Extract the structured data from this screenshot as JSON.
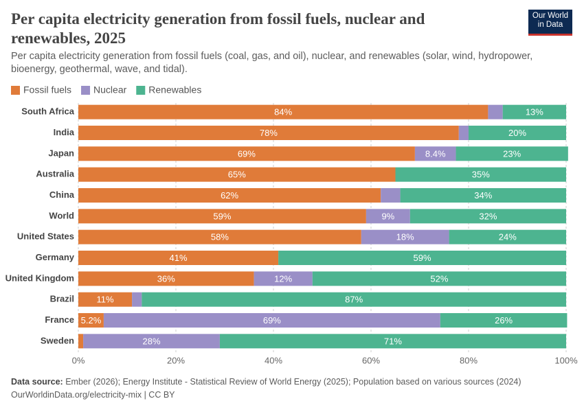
{
  "chart_data": {
    "type": "stacked_bar_horizontal",
    "title": "Per capita electricity generation from fossil fuels, nuclear and renewables, 2025",
    "subtitle": "Per capita electricity generation from fossil fuels (coal, gas, and oil), nuclear, and renewables (solar, wind, hydropower, bioenergy, geothermal, wave, and tidal).",
    "logo": [
      "Our World",
      "in Data"
    ],
    "source_label": "Data source:",
    "source": "Ember (2026); Energy Institute - Statistical Review of World Energy (2025); Population based on various sources (2024)",
    "url": "OurWorldinData.org/electricity-mix | CC BY",
    "legend_position": "top-left",
    "grid": true,
    "categories": [
      "South Africa",
      "India",
      "Japan",
      "Australia",
      "China",
      "World",
      "United States",
      "Germany",
      "United Kingdom",
      "Brazil",
      "France",
      "Sweden"
    ],
    "series": [
      {
        "name": "Fossil fuels",
        "color": "#e07b39",
        "values": [
          84,
          78,
          69,
          65,
          62,
          59,
          58,
          41,
          36,
          11,
          5.2,
          1
        ],
        "value_labels": [
          "84%",
          "78%",
          "69%",
          "65%",
          "62%",
          "59%",
          "58%",
          "41%",
          "36%",
          "11%",
          "5.2%",
          null
        ]
      },
      {
        "name": "Nuclear",
        "color": "#9a8fc7",
        "values": [
          3,
          2,
          8.4,
          0,
          4,
          9,
          18,
          0,
          12,
          2,
          69,
          28
        ],
        "value_labels": [
          null,
          null,
          "8.4%",
          null,
          null,
          "9%",
          "18%",
          null,
          "12%",
          null,
          "69%",
          "28%"
        ]
      },
      {
        "name": "Renewables",
        "color": "#4db490",
        "values": [
          13,
          20,
          23,
          35,
          34,
          32,
          24,
          59,
          52,
          87,
          26,
          71
        ],
        "value_labels": [
          "13%",
          "20%",
          "23%",
          "35%",
          "34%",
          "32%",
          "24%",
          "59%",
          "52%",
          "87%",
          "26%",
          "71%"
        ]
      }
    ],
    "xlim": [
      0,
      100
    ],
    "xticks": [
      {
        "value": 0,
        "label": "0%"
      },
      {
        "value": 20,
        "label": "20%"
      },
      {
        "value": 40,
        "label": "40%"
      },
      {
        "value": 60,
        "label": "60%"
      },
      {
        "value": 80,
        "label": "80%"
      },
      {
        "value": 100,
        "label": "100%"
      }
    ]
  }
}
